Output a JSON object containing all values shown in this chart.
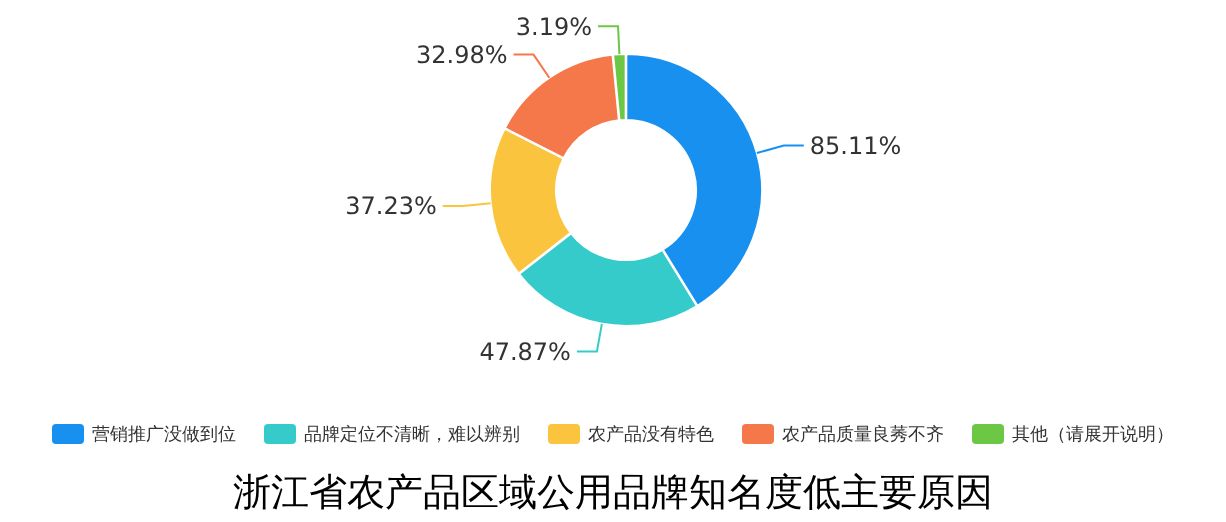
{
  "chart_data": {
    "type": "donut",
    "title": "浙江省农产品区域公用品牌知名度低主要原因",
    "categories": [
      "营销推广没做到位",
      "品牌定位不清晰，难以辨别",
      "农产品没有特色",
      "农产品质量良莠不齐",
      "其他（请展开说明）"
    ],
    "values": [
      85.11,
      47.87,
      37.23,
      32.98,
      3.19
    ],
    "value_labels": [
      "85.11%",
      "47.87%",
      "37.23%",
      "32.98%",
      "3.19%"
    ],
    "colors": [
      "#1890f0",
      "#36cbcb",
      "#fbc43e",
      "#f5784a",
      "#6cc744"
    ],
    "legend": "bottom"
  }
}
